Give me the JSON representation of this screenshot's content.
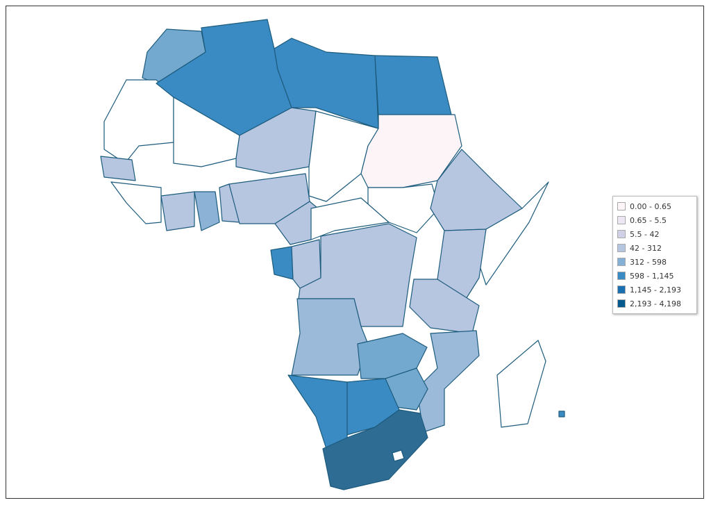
{
  "legend": {
    "items": [
      {
        "label": "0.00 - 0.65",
        "color": "#fdf5f8"
      },
      {
        "label": "0.65 - 5.5",
        "color": "#ece7f2"
      },
      {
        "label": "5.5 - 42",
        "color": "#d0d1e6"
      },
      {
        "label": "42 - 312",
        "color": "#b7c6e0"
      },
      {
        "label": "312 - 598",
        "color": "#84b0d6"
      },
      {
        "label": "598 - 1,145",
        "color": "#3a8bc4"
      },
      {
        "label": "1,145 - 2,193",
        "color": "#1a6fb0"
      },
      {
        "label": "2,193 - 4,198",
        "color": "#045a8d"
      }
    ]
  }
}
